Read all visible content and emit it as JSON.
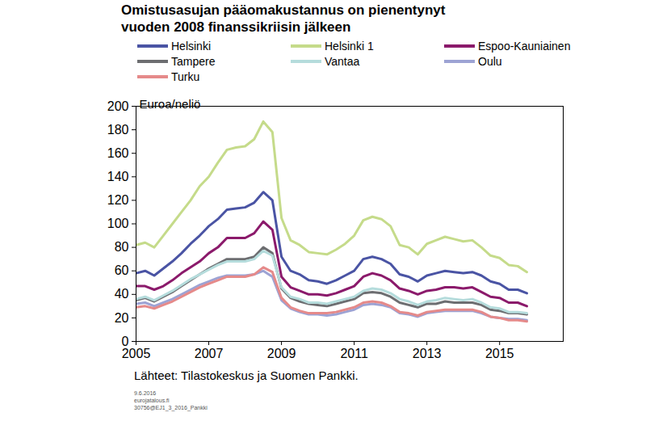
{
  "chart_data": {
    "type": "line",
    "title": "Omistusasujan pääomakustannus on pienentynyt\nvuoden 2008 finanssikriisin jälkeen",
    "y_label": "Euroa/neliö",
    "source": "Lähteet: Tilastokeskus ja Suomen Pankki.",
    "footer": [
      "9.6.2016",
      "eurojatalous.fi",
      "30756@EJ1_3_2016_Pankki"
    ],
    "legend": "top",
    "grid": false,
    "xlim": [
      2005,
      2016.75
    ],
    "xticks": [
      2005,
      2007,
      2009,
      2011,
      2013,
      2015
    ],
    "ylim": [
      0,
      200
    ],
    "yticks": [
      0,
      20,
      40,
      60,
      80,
      100,
      120,
      140,
      160,
      180,
      200
    ],
    "x": [
      2005,
      2005.25,
      2005.5,
      2005.75,
      2006,
      2006.25,
      2006.5,
      2006.75,
      2007,
      2007.25,
      2007.5,
      2007.75,
      2008,
      2008.25,
      2008.5,
      2008.75,
      2009,
      2009.25,
      2009.5,
      2009.75,
      2010,
      2010.25,
      2010.5,
      2010.75,
      2011,
      2011.25,
      2011.5,
      2011.75,
      2012,
      2012.25,
      2012.5,
      2012.75,
      2013,
      2013.25,
      2013.5,
      2013.75,
      2014,
      2014.25,
      2014.5,
      2014.75,
      2015,
      2015.25,
      2015.5,
      2015.75
    ],
    "series": [
      {
        "name": "Helsinki",
        "color": "#4a54a4",
        "values": [
          58,
          60,
          56,
          62,
          68,
          75,
          83,
          90,
          98,
          104,
          112,
          113,
          114,
          118,
          127,
          120,
          72,
          60,
          57,
          52,
          51,
          49,
          52,
          56,
          60,
          70,
          72,
          70,
          66,
          57,
          55,
          51,
          56,
          58,
          60,
          59,
          58,
          59,
          56,
          51,
          49,
          44,
          44,
          41
        ]
      },
      {
        "name": "Helsinki 1",
        "color": "#c5db8a",
        "values": [
          82,
          84,
          80,
          90,
          100,
          110,
          120,
          132,
          140,
          152,
          163,
          165,
          166,
          172,
          187,
          178,
          105,
          86,
          82,
          76,
          75,
          74,
          78,
          83,
          90,
          103,
          106,
          104,
          98,
          82,
          80,
          74,
          83,
          86,
          89,
          87,
          85,
          86,
          80,
          73,
          71,
          65,
          64,
          59
        ]
      },
      {
        "name": "Espoo-Kauniainen",
        "color": "#8b1a6b",
        "values": [
          47,
          47,
          44,
          47,
          52,
          58,
          63,
          68,
          75,
          80,
          88,
          88,
          88,
          92,
          102,
          95,
          55,
          46,
          43,
          40,
          40,
          39,
          41,
          44,
          47,
          55,
          58,
          56,
          52,
          45,
          43,
          40,
          43,
          44,
          46,
          46,
          45,
          46,
          42,
          38,
          37,
          33,
          33,
          30
        ]
      },
      {
        "name": "Tampere",
        "color": "#6d6e71",
        "values": [
          35,
          37,
          34,
          38,
          42,
          47,
          52,
          57,
          62,
          66,
          70,
          70,
          70,
          72,
          80,
          75,
          45,
          37,
          34,
          32,
          31,
          30,
          32,
          34,
          36,
          41,
          42,
          41,
          38,
          33,
          31,
          29,
          32,
          32,
          34,
          33,
          33,
          33,
          31,
          27,
          26,
          24,
          24,
          23
        ]
      },
      {
        "name": "Vantaa",
        "color": "#b5dcdc",
        "values": [
          36,
          38,
          35,
          39,
          43,
          48,
          53,
          57,
          61,
          65,
          68,
          68,
          68,
          70,
          77,
          73,
          46,
          38,
          36,
          33,
          33,
          32,
          34,
          36,
          38,
          43,
          45,
          44,
          41,
          36,
          34,
          31,
          34,
          35,
          37,
          36,
          35,
          36,
          33,
          29,
          28,
          25,
          25,
          24
        ]
      },
      {
        "name": "Oulu",
        "color": "#9da3d4",
        "values": [
          32,
          33,
          30,
          33,
          36,
          40,
          44,
          48,
          51,
          54,
          56,
          56,
          56,
          57,
          60,
          55,
          35,
          28,
          25,
          23,
          23,
          22,
          23,
          25,
          27,
          31,
          32,
          31,
          29,
          24,
          23,
          21,
          24,
          25,
          26,
          26,
          26,
          26,
          24,
          21,
          20,
          19,
          19,
          18
        ]
      },
      {
        "name": "Turku",
        "color": "#e58a8a",
        "values": [
          29,
          30,
          28,
          31,
          34,
          38,
          42,
          46,
          49,
          52,
          55,
          55,
          55,
          57,
          63,
          59,
          37,
          29,
          26,
          24,
          24,
          24,
          25,
          27,
          29,
          33,
          34,
          33,
          30,
          25,
          24,
          22,
          25,
          26,
          27,
          27,
          27,
          27,
          25,
          21,
          20,
          18,
          18,
          17
        ]
      }
    ]
  }
}
